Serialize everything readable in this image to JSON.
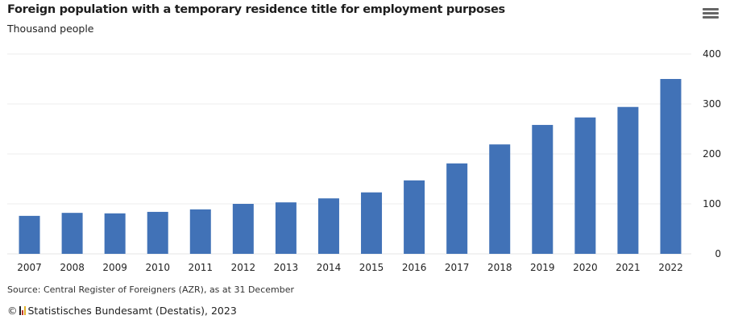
{
  "header": {
    "title": "Foreign population with a temporary residence title for employment purposes",
    "subtitle": "Thousand people",
    "menu_icon": "hamburger-menu-icon"
  },
  "footer": {
    "source": "Source: Central Register of Foreigners (AZR), as at 31 December",
    "copyright_symbol": "©",
    "copyright_text": "Statistisches Bundesamt (Destatis), 2023"
  },
  "colors": {
    "bar": "#4172b7",
    "grid": "#eeeeee",
    "text": "#222222"
  },
  "chart_data": {
    "type": "bar",
    "title": "Foreign population with a temporary residence title for employment purposes",
    "subtitle": "Thousand people",
    "xlabel": "",
    "ylabel": "Thousand people",
    "categories": [
      "2007",
      "2008",
      "2009",
      "2010",
      "2011",
      "2012",
      "2013",
      "2014",
      "2015",
      "2016",
      "2017",
      "2018",
      "2019",
      "2020",
      "2021",
      "2022"
    ],
    "values": [
      76,
      82,
      81,
      84,
      89,
      100,
      103,
      111,
      123,
      147,
      181,
      219,
      258,
      273,
      294,
      350
    ],
    "ylim": [
      0,
      400
    ],
    "yticks": [
      0,
      100,
      200,
      300,
      400
    ],
    "y_axis_side": "right",
    "grid": true,
    "legend": "none"
  }
}
